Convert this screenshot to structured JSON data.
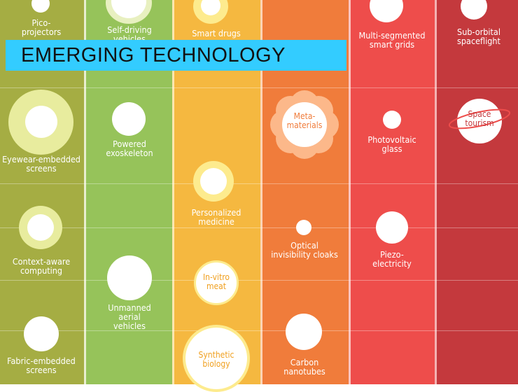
{
  "banner": {
    "title": "EMERGING TECHNOLOGY"
  },
  "colors": {
    "col1": "#a5ad43",
    "col2": "#96c35a",
    "col3": "#f5b840",
    "col4": "#f07c3b",
    "col5": "#ee4d4b",
    "col6": "#c4393d",
    "banner": "#33ccff"
  },
  "items": {
    "pico": "Pico-\nprojectors",
    "selfdriving": "Self-driving\nvehicles",
    "smartdrugs": "Smart drugs",
    "smartgrids": "Multi-segmented\nsmart grids",
    "suborbital": "Sub-orbital\nspaceflight",
    "eyewear": "Eyewear-embedded\nscreens",
    "exoskeleton": "Powered\nexoskeleton",
    "metamaterials": "Meta-\nmaterials",
    "photovoltaic": "Photovoltaic\nglass",
    "spacetourism": "Space\ntourism",
    "personalized": "Personalized\nmedicine",
    "optical": "Optical\ninvisibility cloaks",
    "piezo": "Piezo-\nelectricity",
    "context": "Context-aware\ncomputing",
    "invitro": "In-vitro\nmeat",
    "uav": "Unmanned\naerial\nvehicles",
    "fabric": "Fabric-embedded\nscreens",
    "synthetic": "Synthetic\nbiology",
    "carbon": "Carbon\nnanotubes"
  }
}
